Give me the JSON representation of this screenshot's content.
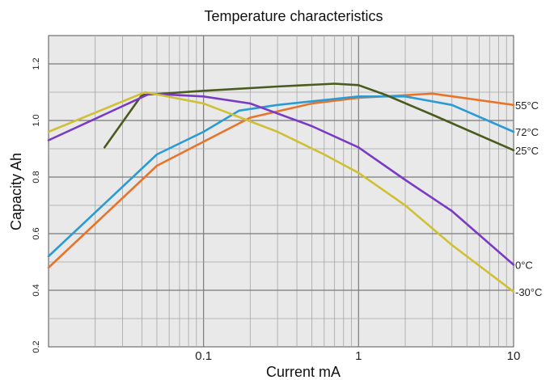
{
  "chart_data": {
    "type": "line",
    "title": "Temperature characteristics",
    "xlabel": "Current mA",
    "ylabel": "Capacity Ah",
    "x_scale": "log",
    "xlim": [
      0.01,
      10
    ],
    "ylim": [
      0.2,
      1.3
    ],
    "x_ticks": [
      {
        "value": 0.1,
        "label": "0.1"
      },
      {
        "value": 1,
        "label": "1"
      },
      {
        "value": 10,
        "label": "10"
      }
    ],
    "y_ticks": [
      {
        "value": 0.2,
        "label": "0.2"
      },
      {
        "value": 0.4,
        "label": "0.4"
      },
      {
        "value": 0.6,
        "label": "0.6"
      },
      {
        "value": 0.8,
        "label": "0.8"
      },
      {
        "value": 1.0,
        "label": "1.0"
      },
      {
        "value": 1.2,
        "label": "1.2"
      }
    ],
    "grid": true,
    "series": [
      {
        "name": "55°C",
        "color": "#e8742a",
        "points": [
          [
            0.01,
            0.48
          ],
          [
            0.05,
            0.84
          ],
          [
            0.2,
            1.01
          ],
          [
            0.5,
            1.06
          ],
          [
            1,
            1.08
          ],
          [
            3,
            1.095
          ],
          [
            10,
            1.055
          ]
        ]
      },
      {
        "name": "72°C",
        "color": "#2a9bd4",
        "points": [
          [
            0.01,
            0.52
          ],
          [
            0.05,
            0.88
          ],
          [
            0.1,
            0.96
          ],
          [
            0.17,
            1.035
          ],
          [
            0.3,
            1.055
          ],
          [
            1,
            1.085
          ],
          [
            2,
            1.085
          ],
          [
            4,
            1.055
          ],
          [
            10,
            0.96
          ]
        ]
      },
      {
        "name": "25°C",
        "color": "#4b5a1e",
        "points": [
          [
            0.023,
            0.905
          ],
          [
            0.04,
            1.09
          ],
          [
            0.1,
            1.105
          ],
          [
            0.3,
            1.12
          ],
          [
            0.7,
            1.13
          ],
          [
            1,
            1.125
          ],
          [
            1.5,
            1.09
          ],
          [
            3,
            1.02
          ],
          [
            10,
            0.895
          ]
        ]
      },
      {
        "name": "0°C",
        "color": "#7a3bc4",
        "points": [
          [
            0.01,
            0.93
          ],
          [
            0.045,
            1.095
          ],
          [
            0.1,
            1.085
          ],
          [
            0.2,
            1.06
          ],
          [
            0.5,
            0.98
          ],
          [
            1,
            0.905
          ],
          [
            2,
            0.79
          ],
          [
            4,
            0.68
          ],
          [
            10,
            0.49
          ]
        ]
      },
      {
        "name": "-30°C",
        "color": "#cfc035",
        "points": [
          [
            0.01,
            0.96
          ],
          [
            0.042,
            1.1
          ],
          [
            0.1,
            1.06
          ],
          [
            0.3,
            0.96
          ],
          [
            0.6,
            0.88
          ],
          [
            1,
            0.815
          ],
          [
            2,
            0.7
          ],
          [
            4,
            0.56
          ],
          [
            10,
            0.395
          ]
        ]
      }
    ]
  }
}
